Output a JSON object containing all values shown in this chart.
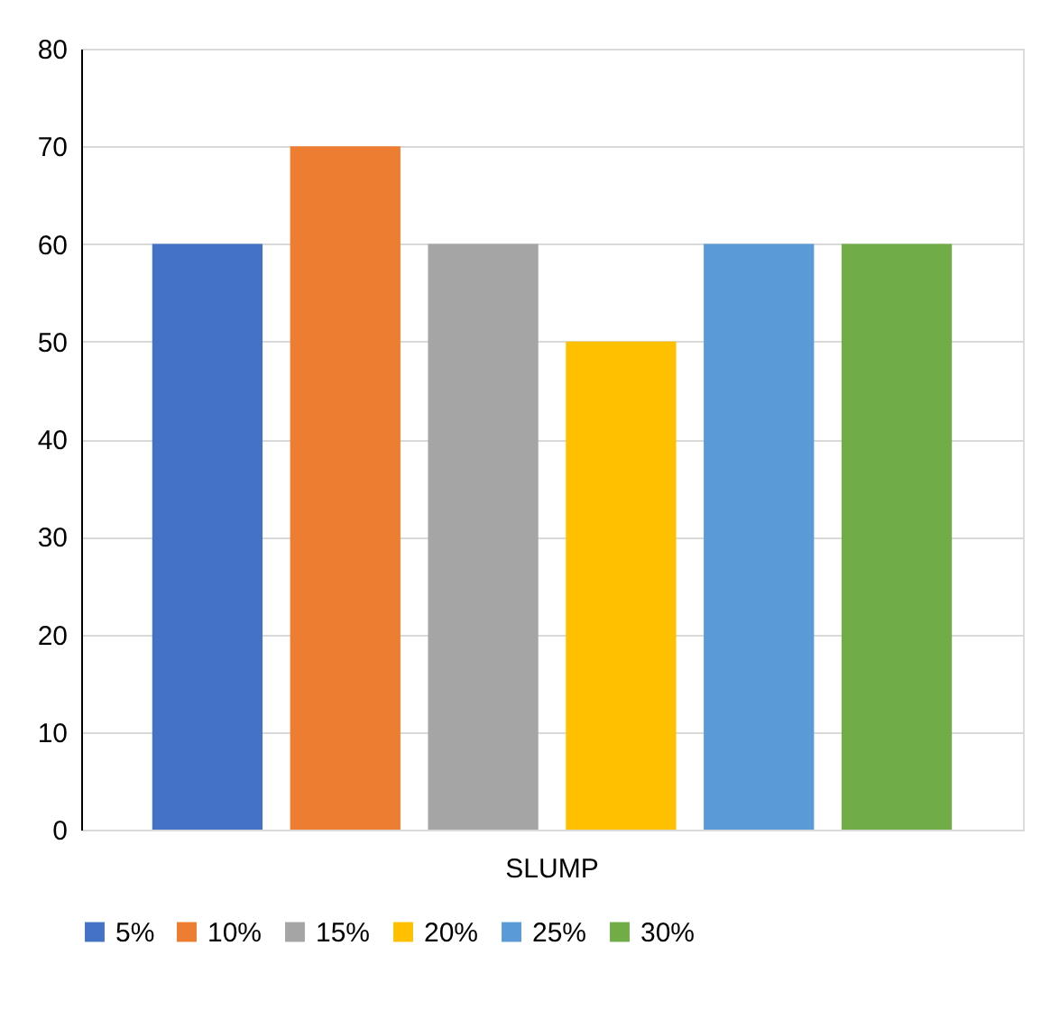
{
  "chart_data": {
    "type": "bar",
    "categories": [
      "SLUMP"
    ],
    "series": [
      {
        "name": "5%",
        "color": "#4472c4",
        "values": [
          60
        ]
      },
      {
        "name": "10%",
        "color": "#ed7d31",
        "values": [
          70
        ]
      },
      {
        "name": "15%",
        "color": "#a5a5a5",
        "values": [
          60
        ]
      },
      {
        "name": "20%",
        "color": "#ffc000",
        "values": [
          50
        ]
      },
      {
        "name": "25%",
        "color": "#5b9bd5",
        "values": [
          60
        ]
      },
      {
        "name": "30%",
        "color": "#70ad47",
        "values": [
          60
        ]
      }
    ],
    "ylim": [
      0,
      80
    ],
    "yticks": [
      0,
      10,
      20,
      30,
      40,
      50,
      60,
      70,
      80
    ],
    "grid": "y",
    "legend": "bottom"
  }
}
